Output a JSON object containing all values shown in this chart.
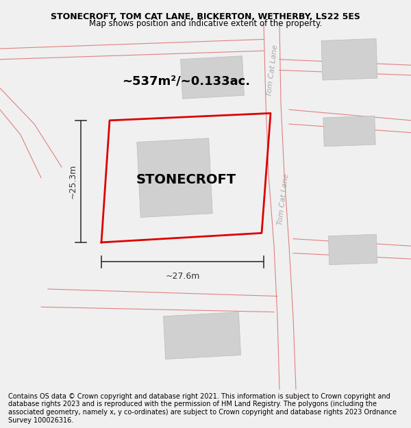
{
  "title": "STONECROFT, TOM CAT LANE, BICKERTON, WETHERBY, LS22 5ES",
  "subtitle": "Map shows position and indicative extent of the property.",
  "footer": "Contains OS data © Crown copyright and database right 2021. This information is subject to Crown copyright and database rights 2023 and is reproduced with the permission of HM Land Registry. The polygons (including the associated geometry, namely x, y co-ordinates) are subject to Crown copyright and database rights 2023 Ordnance Survey 100026316.",
  "background_color": "#f0f0f0",
  "map_background": "#f0f0f0",
  "property_label": "STONECROFT",
  "area_label": "~537m²/~0.133ac.",
  "width_label": "~27.6m",
  "height_label": "~25.3m",
  "road_label_1": "Tom Cat Lane",
  "road_label_2": "Tom Cat Lane",
  "title_fontsize": 9,
  "subtitle_fontsize": 8.5,
  "footer_fontsize": 7.0,
  "plot_color": "#dd0000",
  "building_fill": "#d0d0d0",
  "building_edge": "#bbbbbb",
  "road_line_color": "#e08080",
  "dim_line_color": "#333333",
  "road_label_color": "#aaaaaa",
  "property_text_color": "#000000",
  "plot_lw": 2.0,
  "road_lw": 0.8
}
